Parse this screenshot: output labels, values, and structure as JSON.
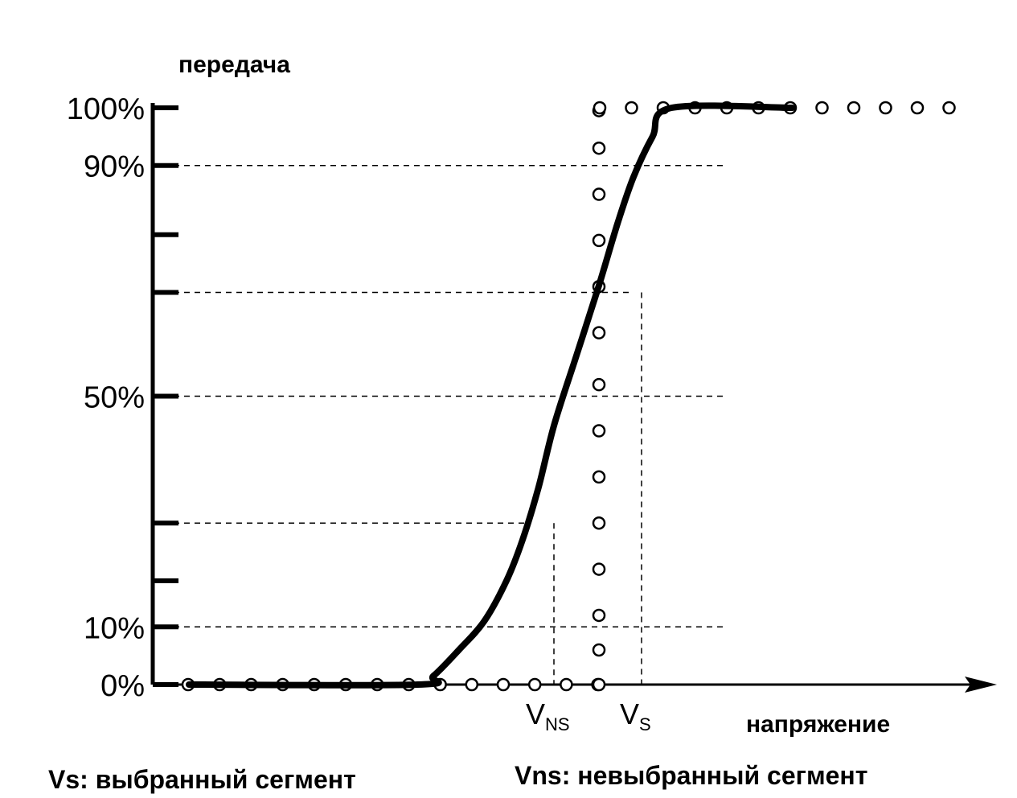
{
  "chart_data": {
    "type": "line",
    "ylabel": "передача",
    "xlabel": "напряжение",
    "ylim": [
      0,
      100
    ],
    "y_ticks_labeled": [
      {
        "value": 100,
        "label": "100%"
      },
      {
        "value": 90,
        "label": "90%"
      },
      {
        "value": 50,
        "label": "50%"
      },
      {
        "value": 10,
        "label": "10%"
      },
      {
        "value": 0,
        "label": "0%"
      }
    ],
    "y_ticks_unlabeled": [
      78,
      68,
      28,
      18
    ],
    "series": [
      {
        "style": "solid-thick",
        "x": [
          0,
          7.2,
          7.7,
          8.5,
          9.3,
          10.0,
          10.5,
          11.0,
          11.5,
          12.2,
          12.9,
          13.5,
          14.0,
          14.6,
          15.2,
          19.0
        ],
        "y": [
          0,
          0,
          1.5,
          6,
          11,
          18,
          25,
          34,
          45,
          57,
          69,
          80,
          88,
          95,
          100,
          100
        ]
      }
    ],
    "dotted_traces": [
      {
        "x": [
          0,
          1,
          2,
          3,
          4,
          5,
          6,
          7,
          8,
          9,
          10,
          11,
          12,
          13
        ],
        "y": [
          0,
          0,
          0,
          0,
          0,
          0,
          0,
          0,
          0,
          0,
          0,
          0,
          0,
          0
        ]
      },
      {
        "x": [
          13,
          13,
          13,
          13,
          13,
          13,
          13,
          13,
          13,
          13,
          13,
          13,
          13,
          13
        ],
        "y": [
          0,
          6,
          12,
          20,
          28,
          36,
          44,
          52,
          61,
          69,
          77,
          85,
          93,
          99.5
        ]
      },
      {
        "x": [
          13,
          14,
          15,
          16,
          17,
          18,
          19,
          20,
          21,
          22,
          23,
          24
        ],
        "y": [
          100,
          100,
          100,
          100,
          100,
          100,
          100,
          100,
          100,
          100,
          100,
          100
        ]
      }
    ],
    "reference_lines": [
      {
        "y": 90
      },
      {
        "y": 68,
        "x_end": 13.9
      },
      {
        "y": 50
      },
      {
        "y": 28,
        "x_end": 10.6
      },
      {
        "y": 10
      }
    ],
    "markers": [
      {
        "x": 10.6,
        "label_main": "V",
        "label_sub": "NS"
      },
      {
        "x": 13.9,
        "label_main": "V",
        "label_sub": "S"
      }
    ],
    "annotations": [
      "Vs: выбранный сегмент",
      "Vns: невыбранный сегмент"
    ]
  }
}
